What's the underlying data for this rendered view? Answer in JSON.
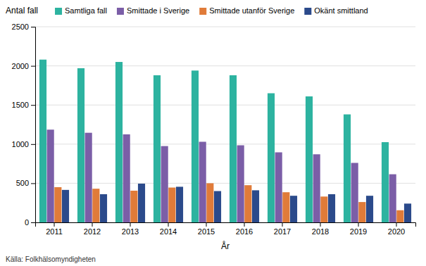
{
  "chart_data": {
    "type": "bar",
    "categories": [
      "2011",
      "2012",
      "2013",
      "2014",
      "2015",
      "2016",
      "2017",
      "2018",
      "2019",
      "2020"
    ],
    "series": [
      {
        "name": "Samtliga fall",
        "color": "#2db3a0",
        "values": [
          2080,
          1970,
          2050,
          1880,
          1940,
          1880,
          1650,
          1610,
          1380,
          1025
        ]
      },
      {
        "name": "Smittade i Sverige",
        "color": "#7b5ea7",
        "values": [
          1185,
          1145,
          1125,
          975,
          1030,
          985,
          895,
          870,
          760,
          615
        ]
      },
      {
        "name": "Smittade utanför Sverige",
        "color": "#e07b39",
        "values": [
          450,
          430,
          405,
          445,
          500,
          475,
          385,
          330,
          260,
          155
        ]
      },
      {
        "name": "Okänt smittland",
        "color": "#2b4a8b",
        "values": [
          415,
          360,
          495,
          455,
          400,
          410,
          340,
          360,
          340,
          240
        ]
      }
    ],
    "xlabel": "År",
    "ylabel": "Antal fall",
    "source": "Källa: Folkhälsomyndigheten",
    "ylim": [
      0,
      2500
    ],
    "yticks": [
      0,
      500,
      1000,
      1500,
      2000,
      2500
    ],
    "grid": true,
    "legend": "top"
  }
}
